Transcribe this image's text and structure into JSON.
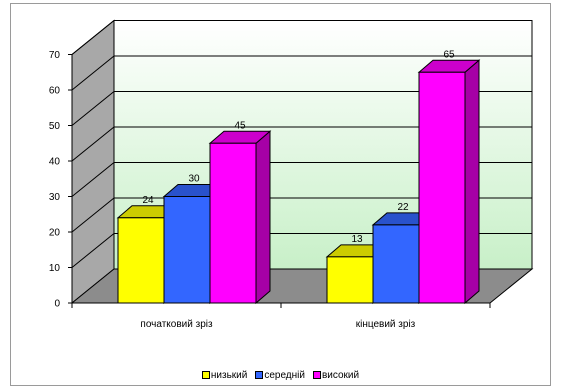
{
  "chart_data": {
    "type": "bar",
    "title": "",
    "xlabel": "",
    "ylabel": "",
    "ylim": [
      0,
      70
    ],
    "y_ticks": [
      "0",
      "10",
      "20",
      "30",
      "40",
      "50",
      "60",
      "70"
    ],
    "grid": true,
    "three_d": true,
    "legend_position": "bottom",
    "categories": [
      "початковий зріз",
      "кінцевий зріз"
    ],
    "series": [
      {
        "name": "низький",
        "values": [
          24,
          13
        ],
        "color": "#ffff00"
      },
      {
        "name": "середній",
        "values": [
          30,
          22
        ],
        "color": "#3366ff"
      },
      {
        "name": "високий",
        "values": [
          45,
          65
        ],
        "color": "#ff00ff"
      }
    ],
    "data_labels": [
      [
        "24",
        "13"
      ],
      [
        "30",
        "22"
      ],
      [
        "45",
        "65"
      ]
    ],
    "colors": {
      "wall_top": "#ffffff",
      "wall_bottom": "#c8f0c8",
      "side_wall": "#a8a8a8",
      "floor": "#8c8c8c",
      "gridline": "#000000"
    }
  }
}
